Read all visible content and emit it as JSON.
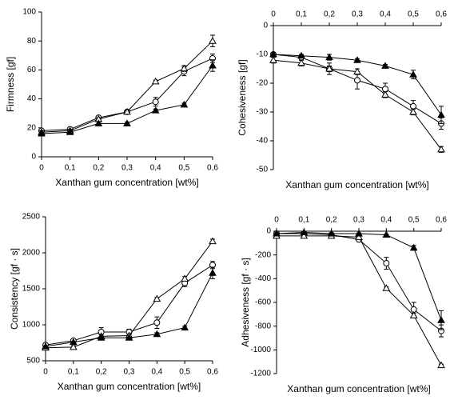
{
  "chart_data": [
    {
      "type": "line",
      "ylabel": "Firmness [gf]",
      "xlabel": "Xanthan gum concentration [wt%]",
      "x_axis_position": "bottom",
      "x": [
        0,
        0.1,
        0.2,
        0.3,
        0.4,
        0.5,
        0.6
      ],
      "xlim": [
        0,
        0.6
      ],
      "ylim": [
        0,
        100
      ],
      "xticks": [
        0,
        {
          "value": 0.1,
          "label": "0,1"
        },
        {
          "value": 0.2,
          "label": "0,2"
        },
        {
          "value": 0.3,
          "label": "0,3"
        },
        {
          "value": 0.4,
          "label": "0,4"
        },
        {
          "value": 0.5,
          "label": "0,5"
        },
        {
          "value": 0.6,
          "label": "0,6"
        }
      ],
      "yticks": [
        0,
        20,
        40,
        60,
        80,
        100
      ],
      "series": [
        {
          "marker": "circle-open",
          "color": "#000000",
          "values": [
            18,
            19,
            27,
            31,
            38,
            59,
            68
          ],
          "errors": [
            1,
            1,
            1,
            1,
            3,
            3,
            3
          ]
        },
        {
          "marker": "triangle-open",
          "color": "#000000",
          "values": [
            17,
            18,
            26,
            31,
            52,
            61,
            80
          ],
          "errors": [
            1,
            1,
            1,
            1,
            1,
            2,
            4
          ]
        },
        {
          "marker": "triangle-filled",
          "color": "#000000",
          "values": [
            16,
            17,
            23,
            23,
            32,
            36,
            63
          ],
          "errors": [
            1,
            1,
            1,
            1,
            1,
            1,
            4
          ]
        }
      ]
    },
    {
      "type": "line",
      "ylabel": "Cohesiveness [gf]",
      "xlabel": "Xanthan gum concentration [wt%]",
      "x_axis_position": "top",
      "x": [
        0,
        0.1,
        0.2,
        0.3,
        0.4,
        0.5,
        0.6
      ],
      "xlim": [
        0,
        0.6
      ],
      "ylim": [
        -50,
        0
      ],
      "xticks": [
        0,
        {
          "value": 0.1,
          "label": "0,1"
        },
        {
          "value": 0.2,
          "label": "0,2"
        },
        {
          "value": 0.3,
          "label": "0,3"
        },
        {
          "value": 0.4,
          "label": "0,4"
        },
        {
          "value": 0.5,
          "label": "0,5"
        },
        {
          "value": 0.6,
          "label": "0,6"
        }
      ],
      "yticks": [
        0,
        -10,
        -20,
        -30,
        -40,
        -50
      ],
      "series": [
        {
          "marker": "circle-open",
          "color": "#000000",
          "values": [
            -10,
            -11,
            -15,
            -19,
            -22,
            -28,
            -34
          ],
          "errors": [
            0.5,
            1,
            2,
            3,
            2,
            2,
            2
          ]
        },
        {
          "marker": "triangle-open",
          "color": "#000000",
          "values": [
            -12,
            -13,
            -15,
            -16,
            -24,
            -30,
            -43
          ],
          "errors": [
            1,
            1,
            1,
            1,
            1,
            1,
            1
          ]
        },
        {
          "marker": "triangle-filled",
          "color": "#000000",
          "values": [
            -10,
            -10.5,
            -11,
            -12,
            -14,
            -17,
            -31
          ],
          "errors": [
            0.5,
            0.5,
            1,
            0.5,
            0.5,
            1.5,
            3
          ]
        }
      ]
    },
    {
      "type": "line",
      "ylabel": "Consistency [gf · s]",
      "xlabel": "Xanthan gum concentration [wt%]",
      "x_axis_position": "bottom",
      "x": [
        0,
        0.1,
        0.2,
        0.3,
        0.4,
        0.5,
        0.6
      ],
      "xlim": [
        0,
        0.6
      ],
      "ylim": [
        500,
        2500
      ],
      "xticks": [
        0,
        {
          "value": 0.1,
          "label": "0,1"
        },
        {
          "value": 0.2,
          "label": "0,2"
        },
        {
          "value": 0.3,
          "label": "0,3"
        },
        {
          "value": 0.4,
          "label": "0,4"
        },
        {
          "value": 0.5,
          "label": "0,5"
        },
        {
          "value": 0.6,
          "label": "0,6"
        }
      ],
      "yticks": [
        500,
        1000,
        1500,
        2000,
        2500
      ],
      "series": [
        {
          "marker": "circle-open",
          "color": "#000000",
          "values": [
            720,
            780,
            900,
            900,
            1030,
            1580,
            1830
          ],
          "errors": [
            20,
            20,
            60,
            40,
            80,
            50,
            50
          ]
        },
        {
          "marker": "triangle-open",
          "color": "#000000",
          "values": [
            680,
            690,
            840,
            850,
            1360,
            1640,
            2160
          ],
          "errors": [
            10,
            20,
            20,
            20,
            20,
            30,
            30
          ]
        },
        {
          "marker": "triangle-filled",
          "color": "#000000",
          "values": [
            700,
            760,
            820,
            820,
            870,
            960,
            1720
          ],
          "errors": [
            10,
            10,
            10,
            10,
            20,
            20,
            80
          ]
        }
      ]
    },
    {
      "type": "line",
      "ylabel": "Adhesiveness [gf · s]",
      "xlabel": "Xanthan gum concentration [wt%]",
      "x_axis_position": "top",
      "x": [
        0,
        0.1,
        0.2,
        0.3,
        0.4,
        0.5,
        0.6
      ],
      "xlim": [
        0,
        0.6
      ],
      "ylim": [
        -1200,
        0
      ],
      "xticks": [
        0,
        {
          "value": 0.1,
          "label": "0,1"
        },
        {
          "value": 0.2,
          "label": "0,2"
        },
        {
          "value": 0.3,
          "label": "0,3"
        },
        {
          "value": 0.4,
          "label": "0,4"
        },
        {
          "value": 0.5,
          "label": "0,5"
        },
        {
          "value": 0.6,
          "label": "0,6"
        }
      ],
      "yticks": [
        0,
        -200,
        -400,
        -600,
        -800,
        -1000,
        -1200
      ],
      "series": [
        {
          "marker": "circle-open",
          "color": "#000000",
          "values": [
            -20,
            -20,
            -30,
            -70,
            -270,
            -660,
            -840
          ],
          "errors": [
            10,
            10,
            10,
            15,
            50,
            60,
            50
          ]
        },
        {
          "marker": "triangle-open",
          "color": "#000000",
          "values": [
            -40,
            -40,
            -40,
            -50,
            -480,
            -710,
            -1130
          ],
          "errors": [
            5,
            5,
            5,
            5,
            10,
            20,
            10
          ]
        },
        {
          "marker": "triangle-filled",
          "color": "#000000",
          "values": [
            -20,
            -10,
            -20,
            -20,
            -30,
            -140,
            -750
          ],
          "errors": [
            5,
            5,
            5,
            5,
            5,
            20,
            80
          ]
        }
      ]
    }
  ]
}
